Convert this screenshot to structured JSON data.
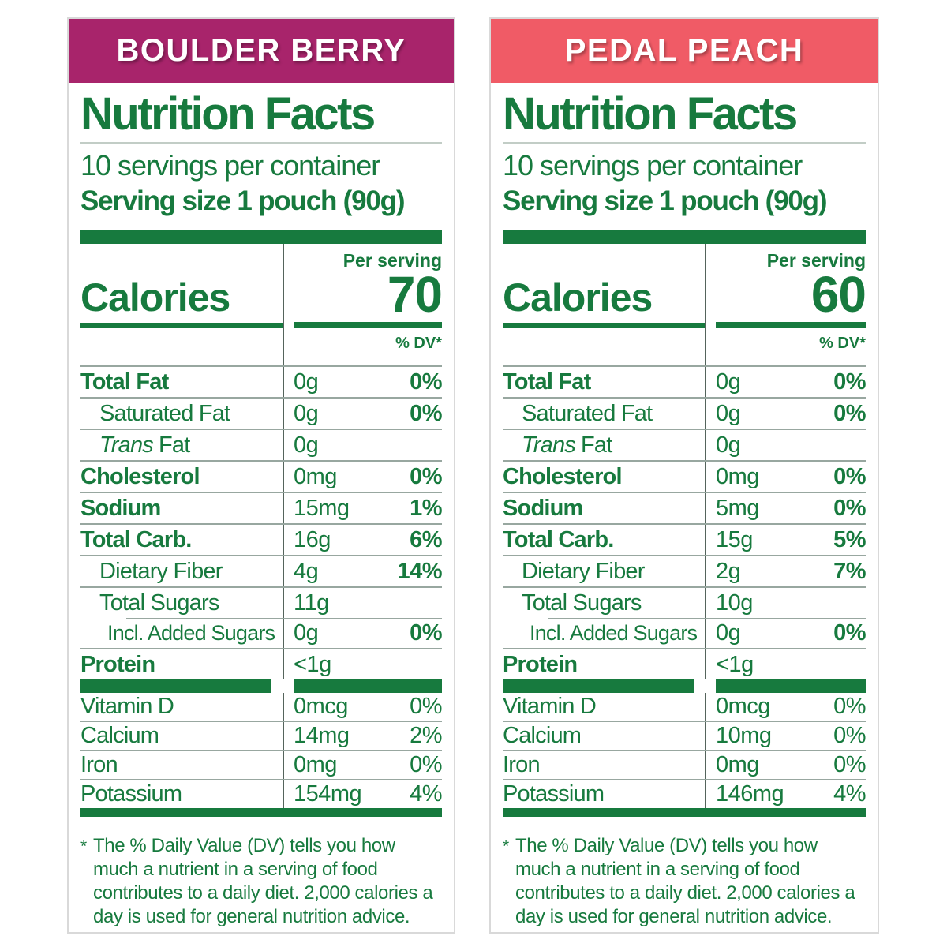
{
  "theme": {
    "green": "#177a3e",
    "hairline": "#98a7a0",
    "divider": "#55645c",
    "panel_border": "#d9d9d9",
    "page_bg": "#ffffff"
  },
  "labels": [
    {
      "flavor": "BOULDER BERRY",
      "header_color": "#a8246b",
      "title": "Nutrition Facts",
      "servings_per_container": "10 servings per container",
      "serving_size": "Serving size 1 pouch (90g)",
      "per_serving_label": "Per serving",
      "calories_label": "Calories",
      "calories_value": "70",
      "dv_header": "% DV*",
      "nutrients": [
        {
          "name": "Total Fat",
          "bold": true,
          "indent": 0,
          "amount": "0g",
          "dv": "0%"
        },
        {
          "name": "Saturated Fat",
          "indent": 1,
          "amount": "0g",
          "dv": "0%"
        },
        {
          "name_italic": "Trans",
          "name": "Fat",
          "indent": 1,
          "amount": "0g",
          "dv": ""
        },
        {
          "name": "Cholesterol",
          "bold": true,
          "indent": 0,
          "amount": "0mg",
          "dv": "0%"
        },
        {
          "name": "Sodium",
          "bold": true,
          "indent": 0,
          "amount": "15mg",
          "dv": "1%"
        },
        {
          "name": "Total Carb.",
          "bold": true,
          "indent": 0,
          "amount": "16g",
          "dv": "6%"
        },
        {
          "name": "Dietary Fiber",
          "indent": 1,
          "amount": "4g",
          "dv": "14%"
        },
        {
          "name": "Total Sugars",
          "indent": 1,
          "amount": "11g",
          "dv": ""
        },
        {
          "name": "Incl. Added Sugars",
          "indent": 2,
          "line_indent": true,
          "amount": "0g",
          "dv": "0%"
        },
        {
          "name": "Protein",
          "bold": true,
          "indent": 0,
          "amount": "<1g",
          "dv": ""
        }
      ],
      "vitamins": [
        {
          "name": "Vitamin D",
          "amount": "0mcg",
          "dv": "0%"
        },
        {
          "name": "Calcium",
          "amount": "14mg",
          "dv": "2%"
        },
        {
          "name": "Iron",
          "amount": "0mg",
          "dv": "0%"
        },
        {
          "name": "Potassium",
          "amount": "154mg",
          "dv": "4%"
        }
      ],
      "footnote_marker": "*",
      "footnote": "The % Daily Value (DV) tells you how much a nutrient in a serving of food contributes to a daily diet. 2,000 calories a day is used for general nutrition advice."
    },
    {
      "flavor": "PEDAL PEACH",
      "header_color": "#f05b66",
      "title": "Nutrition Facts",
      "servings_per_container": "10 servings per container",
      "serving_size": "Serving size 1 pouch (90g)",
      "per_serving_label": "Per serving",
      "calories_label": "Calories",
      "calories_value": "60",
      "dv_header": "% DV*",
      "nutrients": [
        {
          "name": "Total Fat",
          "bold": true,
          "indent": 0,
          "amount": "0g",
          "dv": "0%"
        },
        {
          "name": "Saturated Fat",
          "indent": 1,
          "amount": "0g",
          "dv": "0%"
        },
        {
          "name_italic": "Trans",
          "name": "Fat",
          "indent": 1,
          "amount": "0g",
          "dv": ""
        },
        {
          "name": "Cholesterol",
          "bold": true,
          "indent": 0,
          "amount": "0mg",
          "dv": "0%"
        },
        {
          "name": "Sodium",
          "bold": true,
          "indent": 0,
          "amount": "5mg",
          "dv": "0%"
        },
        {
          "name": "Total Carb.",
          "bold": true,
          "indent": 0,
          "amount": "15g",
          "dv": "5%"
        },
        {
          "name": "Dietary Fiber",
          "indent": 1,
          "amount": "2g",
          "dv": "7%"
        },
        {
          "name": "Total Sugars",
          "indent": 1,
          "amount": "10g",
          "dv": ""
        },
        {
          "name": "Incl. Added Sugars",
          "indent": 2,
          "line_indent": true,
          "amount": "0g",
          "dv": "0%"
        },
        {
          "name": "Protein",
          "bold": true,
          "indent": 0,
          "amount": "<1g",
          "dv": ""
        }
      ],
      "vitamins": [
        {
          "name": "Vitamin D",
          "amount": "0mcg",
          "dv": "0%"
        },
        {
          "name": "Calcium",
          "amount": "10mg",
          "dv": "0%"
        },
        {
          "name": "Iron",
          "amount": "0mg",
          "dv": "0%"
        },
        {
          "name": "Potassium",
          "amount": "146mg",
          "dv": "4%"
        }
      ],
      "footnote_marker": "*",
      "footnote": "The % Daily Value (DV) tells you how much a nutrient in a serving of food contributes to a daily diet. 2,000 calories a day is used for general nutrition advice."
    }
  ]
}
